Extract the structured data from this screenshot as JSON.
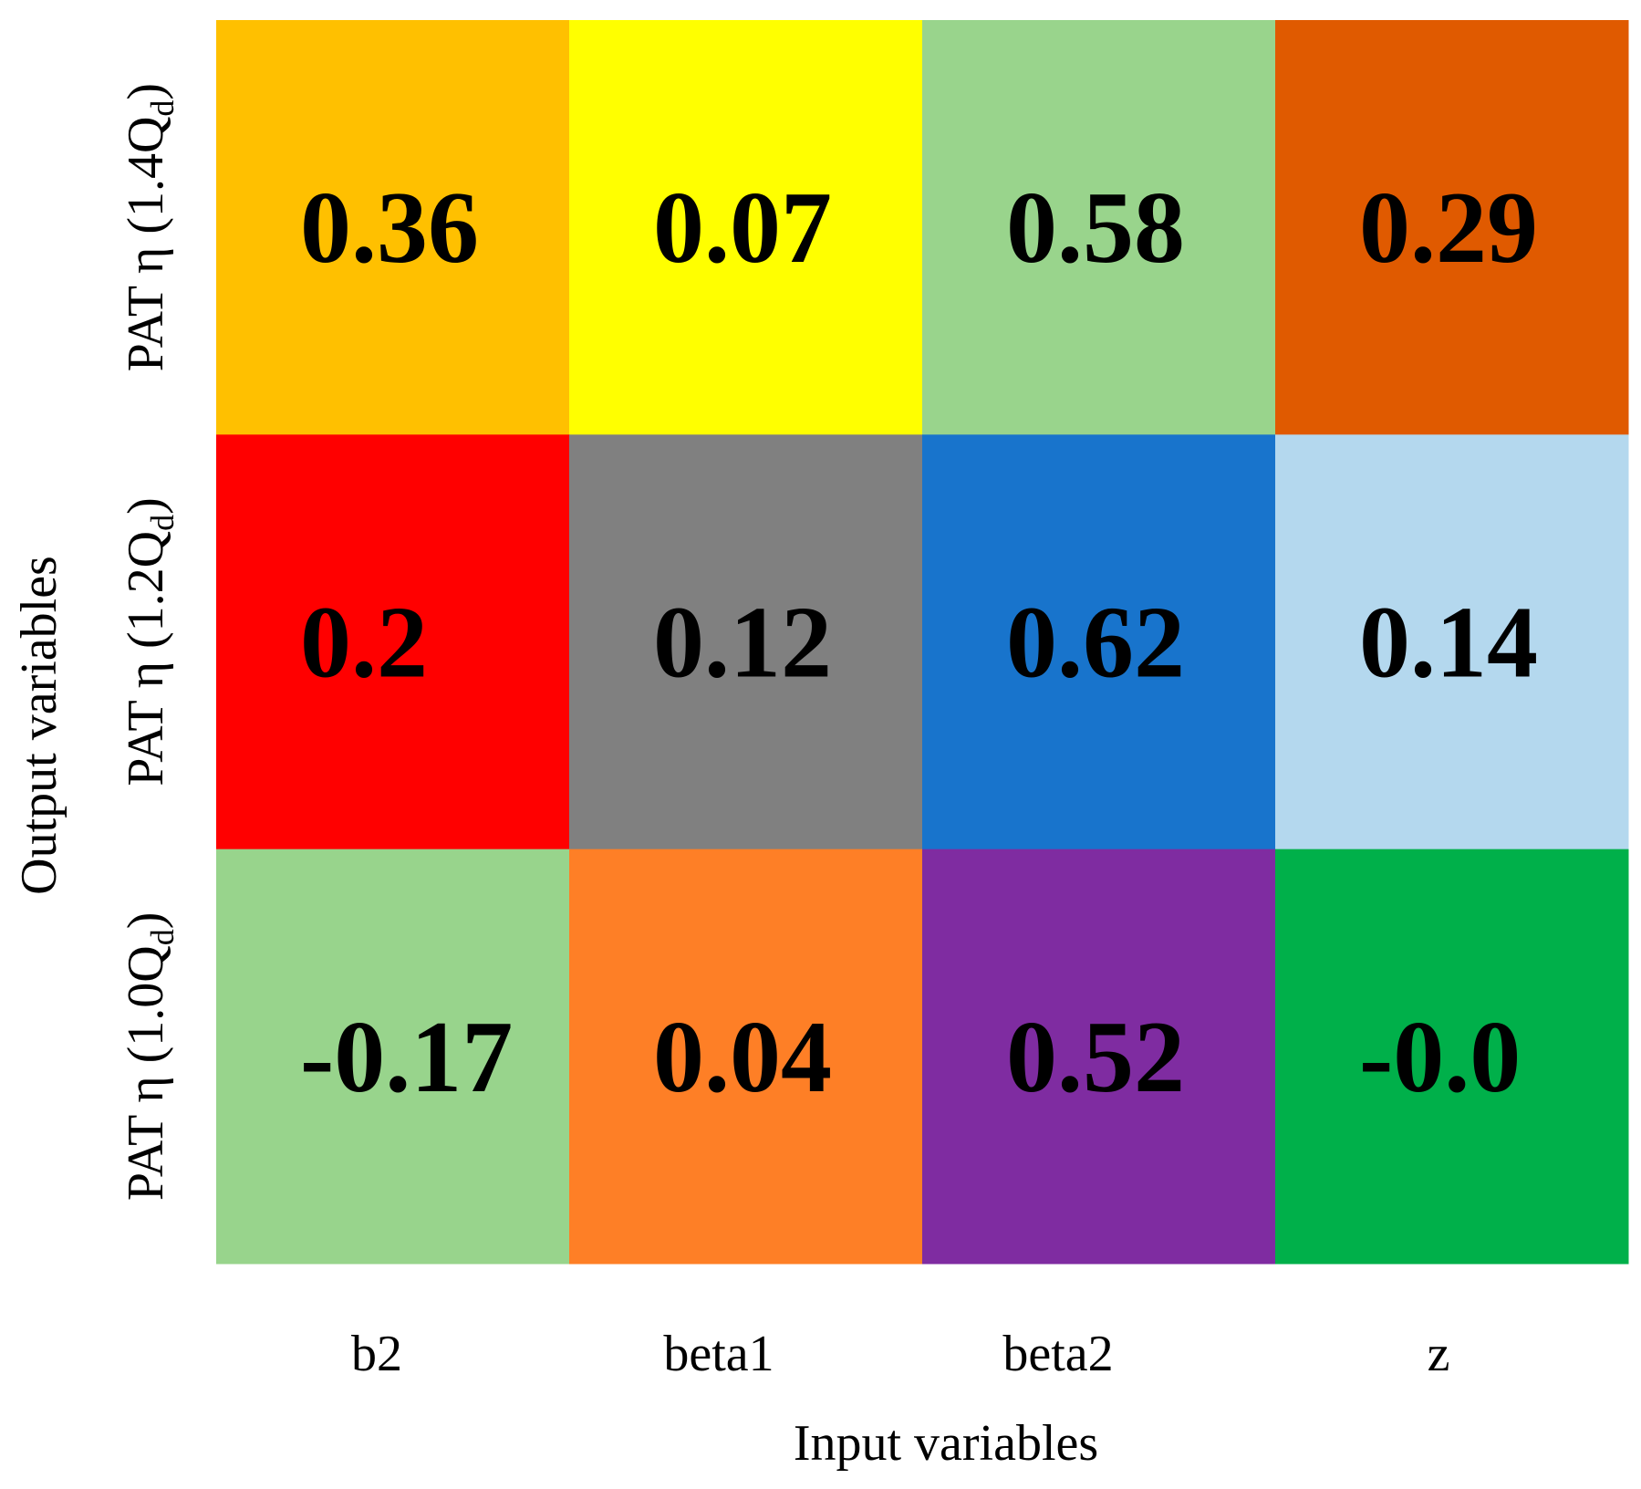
{
  "chart_data": {
    "type": "heatmap",
    "xlabel": "Input variables",
    "ylabel": "Output variables",
    "x_categories": [
      "b2",
      "beta1",
      "beta2",
      "z"
    ],
    "y_categories": [
      {
        "main": "PAT η (1.4Q",
        "sub": "d",
        "close": ")"
      },
      {
        "main": "PAT η (1.2Q",
        "sub": "d",
        "close": ")"
      },
      {
        "main": "PAT η (1.0Q",
        "sub": "d",
        "close": ")"
      }
    ],
    "values": [
      [
        0.36,
        0.07,
        0.58,
        0.29
      ],
      [
        0.2,
        0.12,
        0.62,
        0.14
      ],
      [
        -0.17,
        0.04,
        0.52,
        -0.0
      ]
    ],
    "value_labels": [
      [
        "0.36",
        "0.07",
        "0.58",
        "0.29"
      ],
      [
        "0.2",
        "0.12",
        "0.62",
        "0.14"
      ],
      [
        "-0.17",
        "0.04",
        "0.52",
        "-0.0"
      ]
    ],
    "cell_colors": [
      [
        "#ffc000",
        "#ffff00",
        "#99d48c",
        "#e05a00"
      ],
      [
        "#ff0000",
        "#808080",
        "#1874cc",
        "#b4d8ee"
      ],
      [
        "#98d48c",
        "#fe7f26",
        "#7f2ca1",
        "#00b04a"
      ]
    ],
    "grid": false,
    "legend": "none"
  }
}
